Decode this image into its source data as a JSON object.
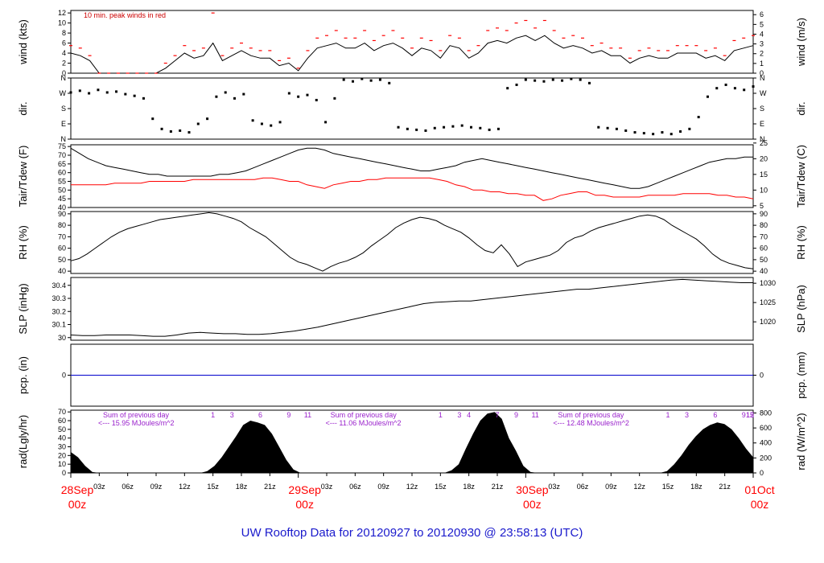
{
  "title": "UW Rooftop Data for 20120927  to  20120930 @ 23:58:13  (UTC)",
  "colors": {
    "series": "#000000",
    "dewpoint": "#ff0000",
    "peak": "#ff0000",
    "precip": "#0000cc",
    "notes": "#9a22cc",
    "title": "#1a1acc",
    "day_labels": "#ff0000"
  },
  "chart_data": [
    {
      "type": "line",
      "ylabel": "wind (kts)",
      "ylabel_right": "wind (m/s)",
      "ylim": [
        0,
        12.5
      ],
      "yticks": [
        0,
        2,
        4,
        6,
        8,
        10,
        12
      ],
      "yticks_right": [
        0,
        1,
        2,
        3,
        4,
        5,
        6
      ],
      "annotation": "10 min. peak winds in red",
      "series": [
        {
          "values": [
            4,
            3.5,
            2.5,
            0,
            0,
            0,
            0,
            0,
            0,
            0,
            1,
            2.5,
            4,
            3,
            3.5,
            6,
            2.5,
            3.5,
            4.5,
            3.5,
            3,
            3,
            1.5,
            2,
            0.5,
            3,
            5,
            5.5,
            6,
            5,
            5,
            6,
            4.5,
            5.5,
            6,
            5,
            3.5,
            5,
            4.5,
            3,
            5.5,
            5,
            3,
            4,
            6,
            6.5,
            6,
            7,
            7.5,
            6.5,
            7.5,
            6,
            5,
            5.5,
            5,
            4,
            4.5,
            3.5,
            3.5,
            2,
            3,
            3.5,
            3,
            3,
            4,
            4,
            4,
            3,
            3.5,
            2.5,
            4.5,
            5,
            5.5
          ]
        },
        {
          "name": "10 min. peak",
          "values": [
            5.5,
            5,
            3.5,
            0,
            0,
            0,
            0,
            0,
            0,
            0,
            2,
            3.5,
            5.5,
            4.5,
            5,
            12,
            3.5,
            5,
            6,
            5,
            4.5,
            4.5,
            2.5,
            3,
            1,
            4.5,
            7,
            7.5,
            8.5,
            7,
            7,
            8.5,
            6.5,
            7.5,
            8.5,
            7,
            5,
            7,
            6.5,
            4.5,
            7.5,
            7,
            4.5,
            5.5,
            8.5,
            9,
            8.5,
            10,
            10.5,
            9,
            10.5,
            8.5,
            7,
            7.5,
            7,
            5.5,
            6,
            5,
            5,
            3,
            4.5,
            5,
            4.5,
            4.5,
            5.5,
            5.5,
            5.5,
            4.5,
            5,
            3.5,
            6.5,
            7,
            7.5
          ]
        }
      ]
    },
    {
      "type": "scatter",
      "ylabel": "dir.",
      "ylabel_right": "dir.",
      "yticks": [
        "N",
        "E",
        "S",
        "W",
        "N"
      ],
      "yticks_right": [
        "N",
        "E",
        "S",
        "W",
        "N"
      ],
      "ylim": [
        0,
        360
      ],
      "series": [
        {
          "values": [
            275,
            285,
            270,
            290,
            275,
            280,
            265,
            255,
            240,
            120,
            60,
            45,
            50,
            40,
            90,
            120,
            250,
            275,
            240,
            265,
            110,
            90,
            80,
            100,
            270,
            250,
            260,
            230,
            100,
            240,
            350,
            340,
            355,
            345,
            350,
            330,
            70,
            60,
            55,
            50,
            65,
            70,
            75,
            80,
            70,
            65,
            55,
            60,
            300,
            320,
            350,
            345,
            340,
            350,
            345,
            355,
            350,
            330,
            70,
            65,
            60,
            50,
            40,
            35,
            30,
            40,
            30,
            45,
            60,
            130,
            250,
            300,
            320,
            300,
            290,
            310
          ]
        }
      ]
    },
    {
      "type": "line",
      "ylabel": "Tair/Tdew (F)",
      "ylabel_right": "Tair/Tdew (C)",
      "ylim": [
        40,
        76
      ],
      "yticks": [
        40,
        45,
        50,
        55,
        60,
        65,
        70,
        75
      ],
      "yticks_right": [
        5,
        10,
        15,
        20,
        25
      ],
      "series": [
        {
          "name": "Tair",
          "values": [
            74,
            71,
            68,
            66,
            64,
            63,
            62,
            61,
            60,
            59,
            59,
            58,
            58,
            58,
            58,
            58,
            58,
            59,
            59,
            60,
            61,
            63,
            65,
            67,
            69,
            71,
            73,
            74,
            74,
            73,
            71,
            70,
            69,
            68,
            67,
            66,
            65,
            64,
            63,
            62,
            61,
            61,
            62,
            63,
            64,
            66,
            67,
            68,
            67,
            66,
            65,
            64,
            63,
            62,
            61,
            60,
            59,
            58,
            57,
            56,
            55,
            54,
            53,
            52,
            51,
            51,
            52,
            54,
            56,
            58,
            60,
            62,
            64,
            66,
            67,
            68,
            68,
            69,
            69
          ]
        },
        {
          "name": "Tdew",
          "values": [
            53,
            53,
            53,
            53,
            53,
            54,
            54,
            54,
            54,
            55,
            55,
            55,
            55,
            55,
            56,
            56,
            56,
            56,
            56,
            56,
            56,
            56,
            57,
            57,
            56,
            55,
            55,
            53,
            52,
            51,
            53,
            54,
            55,
            55,
            56,
            56,
            57,
            57,
            57,
            57,
            57,
            57,
            56,
            55,
            53,
            52,
            50,
            50,
            49,
            49,
            48,
            48,
            47,
            47,
            44,
            45,
            47,
            48,
            49,
            49,
            47,
            47,
            46,
            46,
            46,
            46,
            47,
            47,
            47,
            47,
            48,
            48,
            48,
            48,
            47,
            47,
            46,
            46,
            45
          ]
        }
      ]
    },
    {
      "type": "line",
      "ylabel": "RH (%)",
      "ylabel_right": "RH (%)",
      "ylim": [
        38,
        92
      ],
      "yticks": [
        40,
        50,
        60,
        70,
        80,
        90
      ],
      "yticks_right": [
        40,
        50,
        60,
        70,
        80,
        90
      ],
      "series": [
        {
          "values": [
            49,
            51,
            55,
            60,
            65,
            70,
            74,
            77,
            79,
            81,
            83,
            85,
            86,
            87,
            88,
            89,
            90,
            91,
            90,
            88,
            86,
            83,
            78,
            74,
            70,
            64,
            58,
            52,
            48,
            46,
            43,
            40,
            44,
            47,
            49,
            52,
            56,
            62,
            67,
            72,
            78,
            82,
            85,
            87,
            86,
            84,
            80,
            77,
            74,
            69,
            63,
            58,
            56,
            63,
            55,
            44,
            48,
            50,
            52,
            54,
            58,
            65,
            69,
            71,
            75,
            78,
            80,
            82,
            84,
            86,
            88,
            89,
            88,
            85,
            80,
            76,
            72,
            68,
            62,
            55,
            50,
            47,
            45,
            43,
            42
          ]
        }
      ]
    },
    {
      "type": "line",
      "ylabel": "SLP (inHg)",
      "ylabel_right": "SLP (hPa)",
      "ylim": [
        29.98,
        30.46
      ],
      "yticks": [
        30.0,
        30.1,
        30.2,
        30.3,
        30.4
      ],
      "yticks_right": [
        1020,
        1025,
        1030
      ],
      "series": [
        {
          "values": [
            30.02,
            30.015,
            30.015,
            30.02,
            30.02,
            30.02,
            30.015,
            30.01,
            30.01,
            30.02,
            30.035,
            30.04,
            30.035,
            30.03,
            30.03,
            30.025,
            30.025,
            30.03,
            30.04,
            30.05,
            30.065,
            30.08,
            30.1,
            30.12,
            30.14,
            30.16,
            30.18,
            30.2,
            30.22,
            30.24,
            30.26,
            30.27,
            30.275,
            30.28,
            30.28,
            30.29,
            30.3,
            30.31,
            30.32,
            30.33,
            30.34,
            30.35,
            30.36,
            30.37,
            30.37,
            30.38,
            30.39,
            30.4,
            30.41,
            30.42,
            30.43,
            30.44,
            30.445,
            30.44,
            30.435,
            30.43,
            30.425,
            30.42,
            30.42
          ]
        }
      ]
    },
    {
      "type": "line",
      "ylabel": "pcp. (in)",
      "ylabel_right": "pcp. (mm)",
      "ylim": [
        -1,
        1
      ],
      "yticks": [
        0
      ],
      "yticks_right": [
        0
      ],
      "series": [
        {
          "values": [
            0,
            0
          ]
        }
      ]
    },
    {
      "type": "area",
      "ylabel": "rad(Lgly/hr)",
      "ylabel_right": "rad (W/m^2)",
      "ylim": [
        0,
        72
      ],
      "yticks": [
        0,
        10,
        20,
        30,
        40,
        50,
        60,
        70
      ],
      "yticks_right": [
        0,
        200,
        400,
        600,
        800
      ],
      "series": [
        {
          "values": [
            24,
            18,
            8,
            1,
            0,
            0,
            0,
            0,
            0,
            0,
            0,
            0,
            0,
            0,
            0,
            0,
            0,
            0,
            0,
            2,
            8,
            18,
            30,
            42,
            55,
            60,
            58,
            55,
            45,
            30,
            15,
            4,
            0,
            0,
            0,
            0,
            0,
            0,
            0,
            0,
            0,
            0,
            0,
            0,
            0,
            0,
            0,
            0,
            0,
            0,
            0,
            0,
            0,
            3,
            10,
            28,
            45,
            60,
            68,
            70,
            62,
            40,
            25,
            8,
            1,
            0,
            0,
            0,
            0,
            0,
            0,
            0,
            0,
            0,
            0,
            0,
            0,
            0,
            0,
            0,
            0,
            0,
            0,
            2,
            10,
            20,
            32,
            42,
            50,
            55,
            58,
            56,
            50,
            40,
            28,
            18
          ]
        }
      ],
      "hour_markers": [
        [
          "1",
          "3",
          "6",
          "9",
          "11"
        ],
        [
          "1",
          "3",
          "4",
          "7",
          "9",
          "11"
        ],
        [
          "1",
          "3",
          "6",
          "9",
          "12",
          "15"
        ]
      ],
      "notes": [
        [
          "Sum of previous day",
          "<--- 15.95 MJoules/m^2"
        ],
        [
          "Sum of previous day",
          "<--- 11.06 MJoules/m^2"
        ],
        [
          "Sum of previous day",
          "<--- 12.48 MJoules/m^2"
        ]
      ]
    }
  ],
  "x_axis": {
    "hours": [
      "03z",
      "06z",
      "09z",
      "12z",
      "15z",
      "18z",
      "21z"
    ],
    "days": [
      {
        "date": "28Sep",
        "time": "00z"
      },
      {
        "date": "29Sep",
        "time": "00z"
      },
      {
        "date": "30Sep",
        "time": "00z"
      },
      {
        "date": "01Oct",
        "time": "00z"
      }
    ]
  }
}
